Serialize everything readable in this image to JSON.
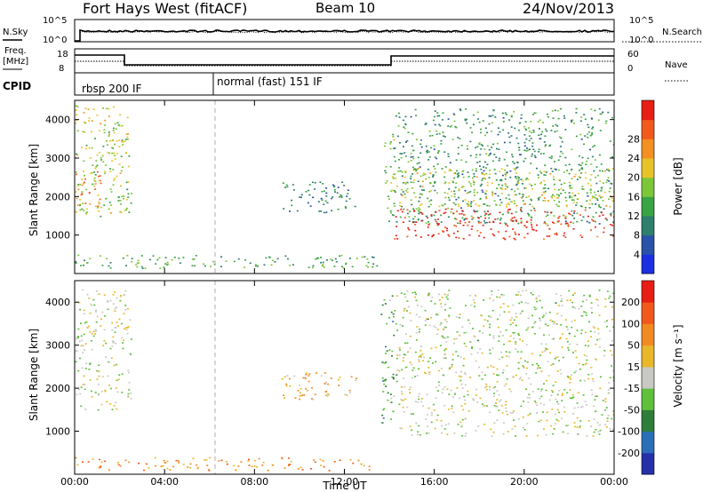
{
  "header": {
    "station": "Fort Hays West (fitACF)",
    "beam": "Beam 10",
    "date": "24/Nov/2013"
  },
  "top_panel": {
    "left_label": "N.Sky",
    "right_label": "N.Search",
    "left_ticks": [
      "10^5",
      "10^0"
    ],
    "right_ticks": [
      "10^5",
      "10^0"
    ]
  },
  "freq_panel": {
    "left_label_line1": "Freq.",
    "left_label_line2": "[MHz]",
    "right_label": "Nave",
    "left_ticks": [
      "18",
      "8"
    ],
    "right_ticks": [
      "60",
      "0"
    ]
  },
  "cpid_panel": {
    "label": "CPID",
    "modes": [
      "rbsp 200 IF",
      "normal (fast) 151 IF"
    ]
  },
  "chart_data": [
    {
      "type": "heatmap",
      "name": "power",
      "ylabel": "Slant Range [km]",
      "ylim": [
        0,
        4500
      ],
      "y_ticks": [
        1000,
        2000,
        3000,
        4000
      ],
      "xlim_hours": [
        0,
        24
      ],
      "colorbar_label": "Power [dB]",
      "colorbar_ticks": [
        "4",
        "8",
        "12",
        "16",
        "20",
        "24",
        "28"
      ],
      "colorbar_colors": [
        "#1c2fe0",
        "#2952a8",
        "#2e7f6e",
        "#3aa344",
        "#7cc63a",
        "#e8c22a",
        "#f29022",
        "#f25a1d",
        "#e81e14"
      ],
      "regions": [
        {
          "t": [
            0.0,
            2.4
          ],
          "r": [
            1500,
            4400
          ],
          "level": 0.55
        },
        {
          "t": [
            0.0,
            1.2
          ],
          "r": [
            1700,
            2700
          ],
          "level": 0.75
        },
        {
          "t": [
            1.9,
            2.5
          ],
          "r": [
            1800,
            2300
          ],
          "level": 0.45
        },
        {
          "t": [
            9.2,
            12.5
          ],
          "r": [
            1600,
            2400
          ],
          "level": 0.3
        },
        {
          "t": [
            0.0,
            13.5
          ],
          "r": [
            150,
            500
          ],
          "level": 0.4
        },
        {
          "t": [
            13.7,
            14.2
          ],
          "r": [
            1200,
            3800
          ],
          "level": 0.45
        },
        {
          "t": [
            14.2,
            24.0
          ],
          "r": [
            1300,
            4300
          ],
          "level": 0.35
        },
        {
          "t": [
            14.2,
            24.0
          ],
          "r": [
            1750,
            2750
          ],
          "level": 0.55
        },
        {
          "t": [
            14.2,
            24.0
          ],
          "r": [
            900,
            1700
          ],
          "level": 0.92
        }
      ]
    },
    {
      "type": "heatmap",
      "name": "velocity",
      "ylabel": "Slant Range [km]",
      "ylim": [
        0,
        4500
      ],
      "y_ticks": [
        1000,
        2000,
        3000,
        4000
      ],
      "xlabel": "Time UT",
      "x_ticks": [
        "00:00",
        "04:00",
        "08:00",
        "12:00",
        "16:00",
        "20:00",
        "00:00"
      ],
      "colorbar_label": "Velocity [m s⁻¹]",
      "colorbar_ticks": [
        "200",
        "100",
        "50",
        "15",
        "-15",
        "-50",
        "-100",
        "-200"
      ],
      "colorbar_colors": [
        "#2631a8",
        "#2b6fb8",
        "#2f7d3a",
        "#5fc03c",
        "#c8c8c4",
        "#e8b82a",
        "#f28a22",
        "#f25a1d",
        "#e81e14"
      ],
      "regions": [
        {
          "t": [
            0.0,
            2.5
          ],
          "r": [
            1500,
            4300
          ],
          "level": 0.5
        },
        {
          "t": [
            9.2,
            12.5
          ],
          "r": [
            1700,
            2400
          ],
          "level": 0.62
        },
        {
          "t": [
            0.0,
            13.5
          ],
          "r": [
            100,
            400
          ],
          "level": 0.72
        },
        {
          "t": [
            13.6,
            14.3
          ],
          "r": [
            1200,
            4200
          ],
          "level": 0.35
        },
        {
          "t": [
            14.3,
            24.0
          ],
          "r": [
            900,
            2500
          ],
          "level": 0.5
        },
        {
          "t": [
            14.3,
            24.0
          ],
          "r": [
            2500,
            4300
          ],
          "level": 0.48
        }
      ]
    }
  ]
}
